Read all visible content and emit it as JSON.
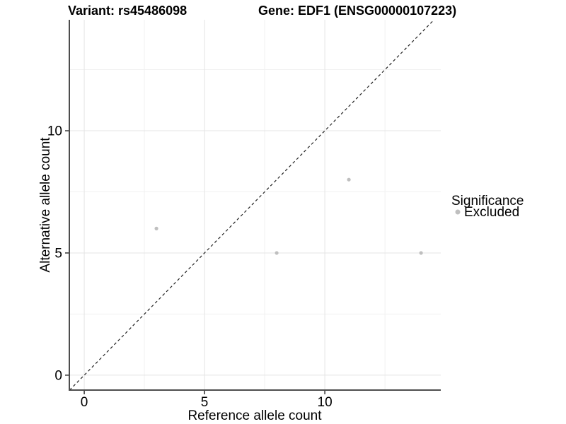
{
  "header": {
    "variant_title": "Variant: rs45486098",
    "gene_title": "Gene: EDF1 (ENSG00000107223)"
  },
  "chart_data": {
    "type": "scatter",
    "xlabel": "Reference allele count",
    "ylabel": "Alternative allele count",
    "xlim": [
      -0.62,
      14.82
    ],
    "ylim": [
      -0.61,
      14.54
    ],
    "x_ticks": [
      0,
      5,
      10
    ],
    "y_ticks": [
      0,
      5,
      10
    ],
    "x_minor_ticks": [
      2.5,
      7.5,
      12.5
    ],
    "y_minor_ticks": [
      2.5,
      7.5,
      12.5
    ],
    "grid": true,
    "series": [
      {
        "name": "Excluded",
        "color": "#bfbfbf",
        "points": [
          [
            3,
            6
          ],
          [
            8,
            5
          ],
          [
            11,
            8
          ],
          [
            14,
            5
          ]
        ]
      }
    ],
    "reference_line": {
      "type": "identity",
      "equation": "y = x",
      "style": "dashed",
      "color": "#222222"
    },
    "legend": {
      "title": "Significance",
      "position": "right",
      "entries": [
        {
          "label": "Excluded",
          "color": "#bfbfbf"
        }
      ]
    },
    "colors": {
      "grid_major": "#e4e4e4",
      "grid_minor": "#f1f1f1",
      "axis_line": "#4d4d4d",
      "tick_mark": "#333333",
      "point": "#bfbfbf"
    }
  }
}
